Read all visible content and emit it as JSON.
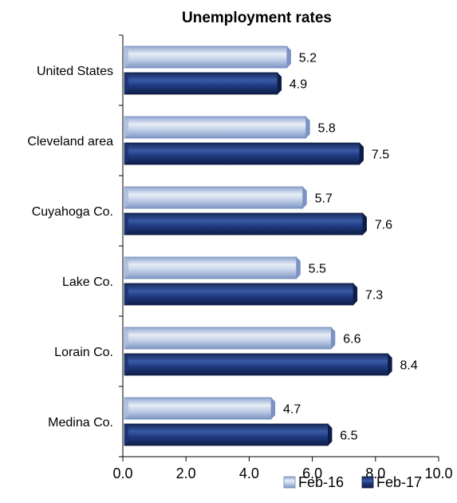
{
  "chart_data": {
    "type": "bar",
    "orientation": "horizontal",
    "title": "Unemployment rates",
    "categories": [
      "United States",
      "Cleveland area",
      "Cuyahoga Co.",
      "Lake Co.",
      "Lorain Co.",
      "Medina Co."
    ],
    "series": [
      {
        "name": "Feb-16",
        "values": [
          5.2,
          5.8,
          5.7,
          5.5,
          6.6,
          4.7
        ],
        "color": "#b8c7e2"
      },
      {
        "name": "Feb-17",
        "values": [
          4.9,
          7.5,
          7.6,
          7.3,
          8.4,
          6.5
        ],
        "color": "#1f3a7a"
      }
    ],
    "value_labels": {
      "Feb-16": [
        "5.2",
        "5.8",
        "5.7",
        "5.5",
        "6.6",
        "4.7"
      ],
      "Feb-17": [
        "4.9",
        "7.5",
        "7.6",
        "7.3",
        "8.4",
        "6.5"
      ]
    },
    "xlim": [
      0,
      10
    ],
    "xticks": [
      0,
      2,
      4,
      6,
      8,
      10
    ],
    "xtick_labels": [
      "0.0",
      "2.0",
      "4.0",
      "6.0",
      "8.0",
      "10.0"
    ],
    "xlabel": "",
    "ylabel": "",
    "grid": false,
    "legend_position": "bottom-right"
  }
}
